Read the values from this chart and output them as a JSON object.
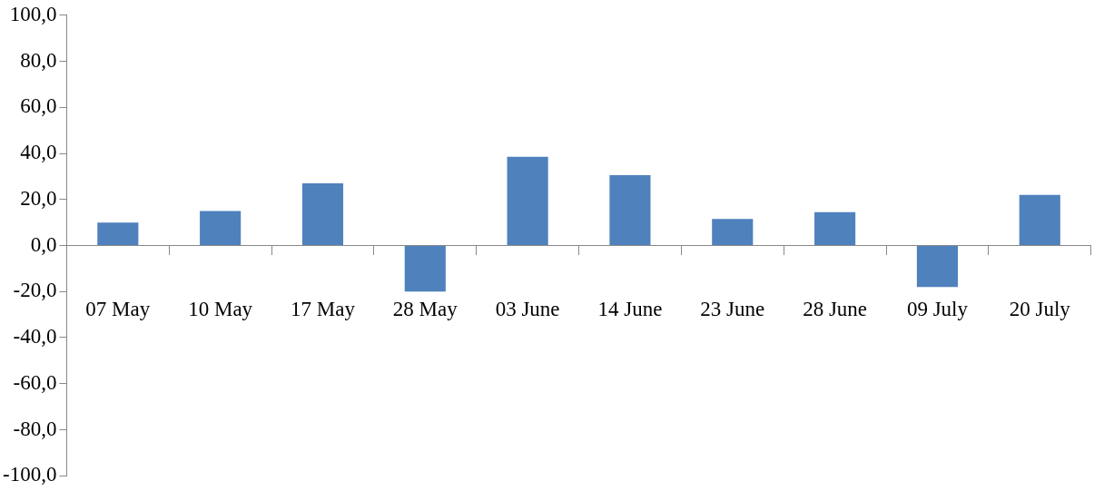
{
  "chart_data": {
    "type": "bar",
    "categories": [
      "07 May",
      "10 May",
      "17 May",
      "28 May",
      "03 June",
      "14 June",
      "23 June",
      "28 June",
      "09 July",
      "20 July"
    ],
    "values": [
      10,
      15,
      27,
      -20,
      38.5,
      30.5,
      11.5,
      14.5,
      -18,
      22
    ],
    "color": "#4f81bd",
    "ylim": [
      -100,
      100
    ],
    "yticks": [
      {
        "value": -100,
        "label": "-100,0"
      },
      {
        "value": -80,
        "label": "-80,0"
      },
      {
        "value": -60,
        "label": "-60,0"
      },
      {
        "value": -40,
        "label": "-40,0"
      },
      {
        "value": -20,
        "label": "-20,0"
      },
      {
        "value": 0,
        "label": "0,0"
      },
      {
        "value": 20,
        "label": "20,0"
      },
      {
        "value": 40,
        "label": "40,0"
      },
      {
        "value": 60,
        "label": "60,0"
      },
      {
        "value": 80,
        "label": "80,0"
      },
      {
        "value": 100,
        "label": "100,0"
      }
    ],
    "grid": false,
    "legend": false
  }
}
